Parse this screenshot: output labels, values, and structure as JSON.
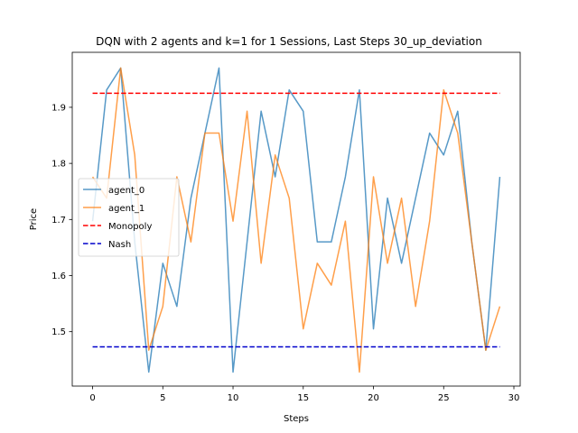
{
  "chart_data": {
    "type": "line",
    "title": "DQN with 2 agents and k=1 for 1 Sessions, Last Steps 30_up_deviation",
    "xlabel": "Steps",
    "ylabel": "Price",
    "xlim": [
      -1.45,
      30.45
    ],
    "ylim": [
      1.403,
      1.998
    ],
    "xticks": [
      0,
      5,
      10,
      15,
      20,
      25,
      30
    ],
    "yticks": [
      1.5,
      1.6,
      1.7,
      1.8,
      1.9
    ],
    "xtick_labels": [
      "0",
      "5",
      "10",
      "15",
      "20",
      "25",
      "30"
    ],
    "ytick_labels": [
      "1.5",
      "1.6",
      "1.7",
      "1.8",
      "1.9"
    ],
    "grid": false,
    "legend_position": "center-left",
    "x": [
      0,
      1,
      2,
      3,
      4,
      5,
      6,
      7,
      8,
      9,
      10,
      11,
      12,
      13,
      14,
      15,
      16,
      17,
      18,
      19,
      20,
      21,
      22,
      23,
      24,
      25,
      26,
      27,
      28,
      29
    ],
    "series": [
      {
        "name": "agent_0",
        "color": "#1f77b4",
        "style": "solid",
        "values": [
          1.697,
          1.931,
          1.97,
          1.66,
          1.428,
          1.622,
          1.545,
          1.738,
          1.854,
          1.97,
          1.428,
          1.66,
          1.893,
          1.776,
          1.931,
          1.893,
          1.66,
          1.66,
          1.776,
          1.931,
          1.505,
          1.738,
          1.622,
          1.738,
          1.854,
          1.815,
          1.893,
          1.66,
          1.467,
          1.776
        ]
      },
      {
        "name": "agent_1",
        "color": "#ff7f0e",
        "style": "solid",
        "values": [
          1.776,
          1.738,
          1.97,
          1.815,
          1.467,
          1.545,
          1.776,
          1.66,
          1.854,
          1.854,
          1.697,
          1.893,
          1.622,
          1.815,
          1.738,
          1.505,
          1.622,
          1.583,
          1.697,
          1.428,
          1.776,
          1.622,
          1.738,
          1.545,
          1.697,
          1.931,
          1.854,
          1.66,
          1.467,
          1.545
        ]
      },
      {
        "name": "Monopoly",
        "color": "#ff0000",
        "style": "dashed",
        "values": [
          1.925,
          1.925,
          1.925,
          1.925,
          1.925,
          1.925,
          1.925,
          1.925,
          1.925,
          1.925,
          1.925,
          1.925,
          1.925,
          1.925,
          1.925,
          1.925,
          1.925,
          1.925,
          1.925,
          1.925,
          1.925,
          1.925,
          1.925,
          1.925,
          1.925,
          1.925,
          1.925,
          1.925,
          1.925,
          1.925
        ]
      },
      {
        "name": "Nash",
        "color": "#0000cc",
        "style": "dashed",
        "values": [
          1.473,
          1.473,
          1.473,
          1.473,
          1.473,
          1.473,
          1.473,
          1.473,
          1.473,
          1.473,
          1.473,
          1.473,
          1.473,
          1.473,
          1.473,
          1.473,
          1.473,
          1.473,
          1.473,
          1.473,
          1.473,
          1.473,
          1.473,
          1.473,
          1.473,
          1.473,
          1.473,
          1.473,
          1.473,
          1.473
        ]
      }
    ]
  }
}
